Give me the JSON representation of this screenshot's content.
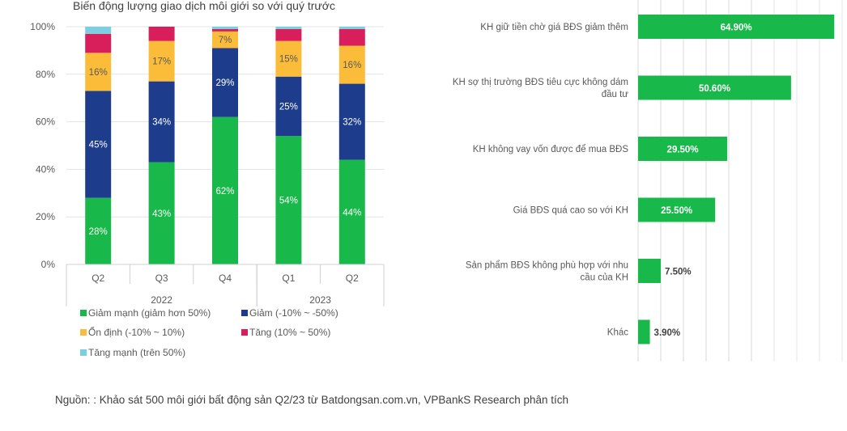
{
  "chart_data": [
    {
      "type": "bar",
      "stacked": true,
      "title": "Biến động lượng giao dịch môi giới so với quý trước",
      "categories": [
        "Q2",
        "Q3",
        "Q4",
        "Q1",
        "Q2"
      ],
      "groups": [
        {
          "label": "2022",
          "span": [
            0,
            2
          ]
        },
        {
          "label": "2023",
          "span": [
            3,
            4
          ]
        }
      ],
      "ylim": [
        0,
        100
      ],
      "yticks": [
        "0%",
        "20%",
        "40%",
        "60%",
        "80%",
        "100%"
      ],
      "series": [
        {
          "name": "Giảm mạnh (giảm hơn 50%)",
          "color": "#19b84a",
          "values": [
            28,
            43,
            62,
            54,
            44
          ],
          "labels": [
            "28%",
            "43%",
            "62%",
            "54%",
            "44%"
          ]
        },
        {
          "name": "Giảm (-10% ~ -50%)",
          "color": "#1d3c8c",
          "values": [
            45,
            34,
            29,
            25,
            32
          ],
          "labels": [
            "45%",
            "34%",
            "29%",
            "25%",
            "32%"
          ]
        },
        {
          "name": "Ổn định (-10% ~ 10%)",
          "color": "#fbbc3a",
          "values": [
            16,
            17,
            7,
            15,
            16
          ],
          "labels": [
            "16%",
            "17%",
            "7%",
            "15%",
            "16%"
          ]
        },
        {
          "name": "Tăng (10% ~ 50%)",
          "color": "#d81e5b",
          "values": [
            8,
            6,
            1,
            5,
            7
          ],
          "labels": [
            "",
            "",
            "",
            "",
            ""
          ]
        },
        {
          "name": "Tăng mạnh (trên 50%)",
          "color": "#7ccfe0",
          "values": [
            3,
            0,
            1,
            1,
            1
          ],
          "labels": [
            "",
            "",
            "",
            "",
            ""
          ]
        }
      ],
      "legend_position": "bottom"
    },
    {
      "type": "bar",
      "orientation": "horizontal",
      "categories": [
        "KH giữ tiền chờ giá BĐS giảm thêm",
        "KH sợ thị trường BĐS tiêu cực không dám đầu tư",
        "KH không vay vốn được để mua BĐS",
        "Giá BĐS quá cao so với KH",
        "Sản phẩm BĐS không phù hợp với nhu cầu của KH",
        "Khác"
      ],
      "values": [
        64.9,
        50.6,
        29.5,
        25.5,
        7.5,
        3.9
      ],
      "labels": [
        "64.90%",
        "50.60%",
        "29.50%",
        "25.50%",
        "7.50%",
        "3.90%"
      ],
      "xlim": [
        0,
        75
      ],
      "color": "#19b84a"
    }
  ],
  "source": "Nguồn: : Khảo sát 500 môi giới bất động sản Q2/23 từ Batdongsan.com.vn, VPBankS Research phân tích"
}
